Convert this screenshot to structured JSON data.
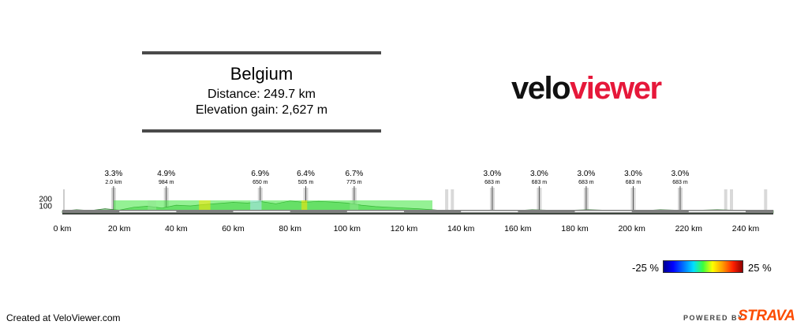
{
  "header": {
    "title": "Belgium",
    "distance": "Distance: 249.7 km",
    "elevation_gain": "Elevation gain: 2,627 m"
  },
  "logo": {
    "part1": "velo",
    "part2": "viewer",
    "colors": {
      "velo": "#111111",
      "viewer": "#e6183a"
    }
  },
  "chart_data": {
    "type": "area",
    "x_range": [
      0,
      249.7
    ],
    "xticks": [
      0,
      20,
      40,
      60,
      80,
      100,
      120,
      140,
      160,
      180,
      200,
      220,
      240
    ],
    "xtick_labels": [
      "0 km",
      "20 km",
      "40 km",
      "60 km",
      "80 km",
      "100 km",
      "120 km",
      "140 km",
      "160 km",
      "180 km",
      "200 km",
      "220 km",
      "240 km"
    ],
    "yticks": [
      100,
      200
    ],
    "ytick_labels": [
      "100",
      "200"
    ],
    "elevation_profile": {
      "x": [
        0,
        5,
        10,
        15,
        20,
        25,
        30,
        35,
        40,
        45,
        50,
        55,
        60,
        65,
        70,
        75,
        80,
        85,
        90,
        95,
        100,
        105,
        110,
        115,
        120,
        125,
        130,
        135,
        140,
        145,
        150,
        155,
        160,
        165,
        170,
        175,
        180,
        185,
        190,
        195,
        200,
        205,
        210,
        215,
        220,
        225,
        230,
        235,
        240,
        245,
        249.7
      ],
      "y": [
        30,
        45,
        35,
        60,
        40,
        80,
        95,
        70,
        110,
        100,
        120,
        135,
        150,
        140,
        160,
        130,
        170,
        150,
        165,
        155,
        140,
        110,
        90,
        80,
        70,
        60,
        45,
        30,
        25,
        30,
        35,
        40,
        35,
        45,
        40,
        35,
        40,
        45,
        40,
        35,
        40,
        35,
        45,
        40,
        35,
        40,
        45,
        40,
        35,
        40,
        35
      ]
    },
    "climbs": [
      {
        "grade": "3.3%",
        "length": "2.0 km",
        "km": 18
      },
      {
        "grade": "4.9%",
        "length": "984 m",
        "km": 36.5
      },
      {
        "grade": "6.9%",
        "length": "650 m",
        "km": 69.5
      },
      {
        "grade": "6.4%",
        "length": "505 m",
        "km": 85.5
      },
      {
        "grade": "6.7%",
        "length": "775 m",
        "km": 102.5
      },
      {
        "grade": "3.0%",
        "length": "683 m",
        "km": 151
      },
      {
        "grade": "3.0%",
        "length": "683 m",
        "km": 167.5
      },
      {
        "grade": "3.0%",
        "length": "683 m",
        "km": 184
      },
      {
        "grade": "3.0%",
        "length": "683 m",
        "km": 200.5
      },
      {
        "grade": "3.0%",
        "length": "683 m",
        "km": 217
      }
    ],
    "gradient_legend": {
      "min_label": "-25 %",
      "max_label": "25 %"
    }
  },
  "footer": {
    "created": "Created at VeloViewer.com",
    "powered_by": "POWERED BY",
    "strava": "STRAVA",
    "strava_color": "#fc4c02"
  }
}
